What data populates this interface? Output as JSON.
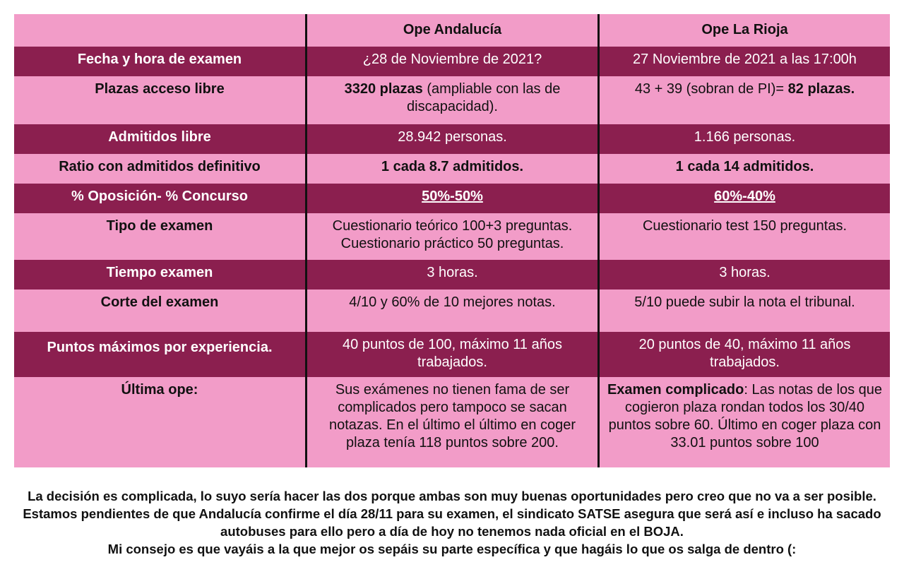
{
  "table": {
    "header": {
      "col1": "",
      "col2": "Ope Andalucía",
      "col3": "Ope La Rioja"
    },
    "rows": [
      {
        "label": "Fecha y hora de examen",
        "andalucia": "¿28 de Noviembre de 2021?",
        "rioja": "27 Noviembre de 2021 a las 17:00h"
      },
      {
        "label": "Plazas acceso libre",
        "andalucia_bold": "3320 plazas",
        "andalucia_rest": " (ampliable con las de discapacidad).",
        "rioja_rest": "43 + 39 (sobran de PI)= ",
        "rioja_bold": "82 plazas."
      },
      {
        "label": "Admitidos libre",
        "andalucia": "28.942 personas.",
        "rioja": "1.166 personas."
      },
      {
        "label": "Ratio con admitidos definitivo",
        "andalucia": "1 cada 8.7 admitidos.",
        "rioja": "1 cada 14 admitidos."
      },
      {
        "label": "% Oposición- % Concurso",
        "andalucia": "50%-50%",
        "rioja": "60%-40%"
      },
      {
        "label": "Tipo de examen",
        "andalucia_line1": "Cuestionario teórico 100+3 preguntas.",
        "andalucia_line2": "Cuestionario práctico 50 preguntas.",
        "rioja": "Cuestionario test 150 preguntas."
      },
      {
        "label": "Tiempo examen",
        "andalucia": "3 horas.",
        "rioja": "3 horas."
      },
      {
        "label": "Corte del examen",
        "andalucia": "4/10 y 60% de 10 mejores notas.",
        "rioja": "5/10 puede subir la nota el tribunal."
      },
      {
        "label": "Puntos máximos por experiencia.",
        "andalucia": "40 puntos de 100, máximo 11 años trabajados.",
        "rioja": "20 puntos de 40, máximo 11 años trabajados."
      },
      {
        "label": "Última ope:",
        "andalucia": "Sus exámenes no tienen fama de ser complicados pero tampoco se sacan notazas. En el último el último en coger plaza tenía 118 puntos sobre 200.",
        "rioja_bold": "Examen complicado",
        "rioja_rest": ": Las notas de los que cogieron plaza rondan todos los 30/40 puntos sobre 60. Último en coger plaza con 33.01 puntos sobre 100"
      }
    ]
  },
  "footer": {
    "paragraph": "La decisión es complicada, lo suyo sería hacer las dos porque ambas son muy buenas oportunidades pero creo que no va a ser posible. Estamos pendientes de que Andalucía confirme el día 28/11 para su examen, el sindicato SATSE asegura que será así e incluso ha sacado autobuses para ello pero a día de hoy no tenemos nada oficial en el BOJA.",
    "advice": "Mi consejo es que vayáis a la que mejor os sepáis su parte específica y que hagáis lo que os salga de dentro (:"
  },
  "colors": {
    "pink": "#f29cc8",
    "wine": "#8b1f4f",
    "divider": "#111111"
  }
}
